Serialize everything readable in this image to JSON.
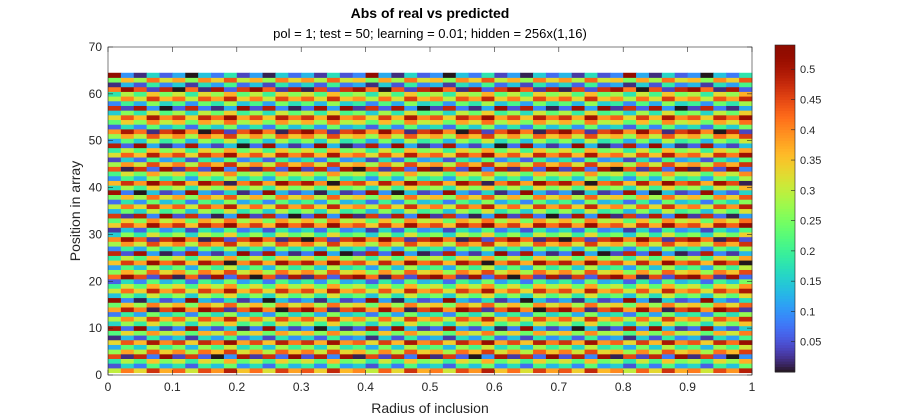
{
  "chart_data": {
    "type": "heatmap",
    "title": "Abs of real vs predicted",
    "subtitle": "pol = 1; test = 50; learning = 0.01; hidden = 256x(1,16)",
    "xlabel": "Radius of inclusion",
    "ylabel": "Position in array",
    "xlim": [
      0,
      1
    ],
    "ylim": [
      0,
      70
    ],
    "x_ticks": [
      "0",
      "0.1",
      "0.2",
      "0.3",
      "0.4",
      "0.5",
      "0.6",
      "0.7",
      "0.8",
      "0.9",
      "1"
    ],
    "y_ticks": [
      "0",
      "10",
      "20",
      "30",
      "40",
      "50",
      "60",
      "70"
    ],
    "grid": {
      "x_start": 0,
      "x_step": 0.02,
      "x_count": 50,
      "y_start": 1,
      "y_step": 1,
      "y_count": 64
    },
    "colorbar": {
      "colormap": "turbo",
      "range": [
        0,
        0.54
      ],
      "ticks": [
        "0.05",
        "0.1",
        "0.15",
        "0.2",
        "0.25",
        "0.3",
        "0.35",
        "0.4",
        "0.45",
        "0.5"
      ]
    },
    "row_values": [
      0.3,
      0.05,
      0.18,
      0.45,
      0.27,
      0.12,
      0.33,
      0.02,
      0.22,
      0.5,
      0.16,
      0.29,
      0.08,
      0.38,
      0.24,
      0.52,
      0.14,
      0.31,
      0.2,
      0.06,
      0.42,
      0.26,
      0.11,
      0.35,
      0.19,
      0.48,
      0.09,
      0.28,
      0.4,
      0.15,
      0.03,
      0.34,
      0.23,
      0.46,
      0.13,
      0.3,
      0.07,
      0.25,
      0.51,
      0.17,
      0.36,
      0.1,
      0.21,
      0.44,
      0.28,
      0.04,
      0.32,
      0.19,
      0.49,
      0.12,
      0.27,
      0.39,
      0.06,
      0.23,
      0.33,
      0.15,
      0.47,
      0.09,
      0.29,
      0.18,
      0.41,
      0.02,
      0.25,
      0.53
    ],
    "col_shift": [
      0.0,
      0.11,
      0.03,
      0.17,
      0.07,
      0.13,
      0.01,
      0.15,
      0.09,
      0.19,
      0.05,
      0.12,
      0.02,
      0.16,
      0.08,
      0.14,
      0.04,
      0.18,
      0.06,
      0.1,
      0.0,
      0.13,
      0.03,
      0.17,
      0.07,
      0.11,
      0.01,
      0.15,
      0.09,
      0.19,
      0.05,
      0.12,
      0.02,
      0.16,
      0.08,
      0.14,
      0.04,
      0.18,
      0.06,
      0.1,
      0.0,
      0.13,
      0.03,
      0.17,
      0.07,
      0.11,
      0.01,
      0.15,
      0.09,
      0.19
    ]
  }
}
